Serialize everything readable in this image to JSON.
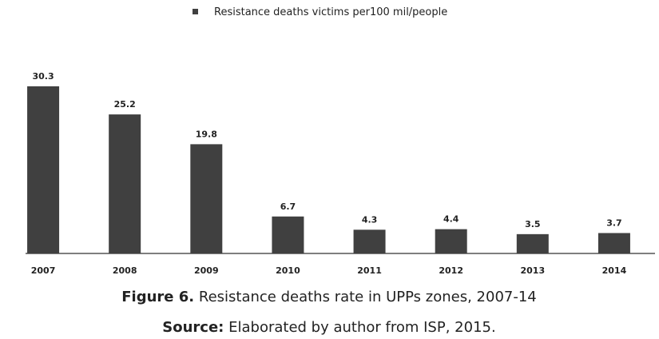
{
  "chart_data": {
    "type": "bar",
    "categories": [
      "2007",
      "2008",
      "2009",
      "2010",
      "2011",
      "2012",
      "2013",
      "2014"
    ],
    "series": [
      {
        "name": "Resistance deaths victims per100 mil/people",
        "color": "#404040",
        "values": [
          30.3,
          25.2,
          19.8,
          6.7,
          4.3,
          4.4,
          3.5,
          3.7
        ]
      }
    ],
    "legend": "top"
  },
  "caption": {
    "label": "Figure 6.",
    "text": "Resistance deaths rate in UPPs zones, 2007-14"
  },
  "source": {
    "label": "Source:",
    "text": "Elaborated by author from ISP, 2015."
  }
}
